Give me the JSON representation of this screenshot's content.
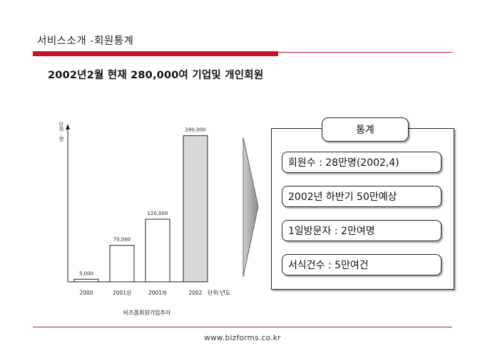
{
  "header": {
    "title": "서비스소개 -회원통계",
    "headline": "2002년2월 현재 280,000여  기업및 개인회원"
  },
  "chart_data": {
    "type": "bar",
    "categories": [
      "2000",
      "2001상",
      "2001하",
      "2002"
    ],
    "values": [
      5000,
      70000,
      120000,
      280000
    ],
    "value_labels": [
      "5,000",
      "70,000",
      "120,000",
      "280,000"
    ],
    "ylabel_chars": [
      "단",
      "위",
      ":",
      "명"
    ],
    "x_unit": "단위:년도",
    "caption": "비즈폼회원가입추이",
    "ylim": [
      0,
      300000
    ],
    "highlight_index": 3,
    "colors": {
      "bar": "#ffffff",
      "highlight": "#d8d8d8",
      "stroke": "#222222"
    }
  },
  "stats": {
    "title": "통계",
    "items": [
      "회원수 : 28만명(2002,4)",
      "2002년 하반기 50만예상",
      "1일방문자 : 2만여명",
      "서식건수 : 5만여건"
    ]
  },
  "footer": {
    "url": "www.bizforms.co.kr"
  },
  "colors": {
    "accent": "#c8102e",
    "arrow": "#9a9a9a"
  }
}
